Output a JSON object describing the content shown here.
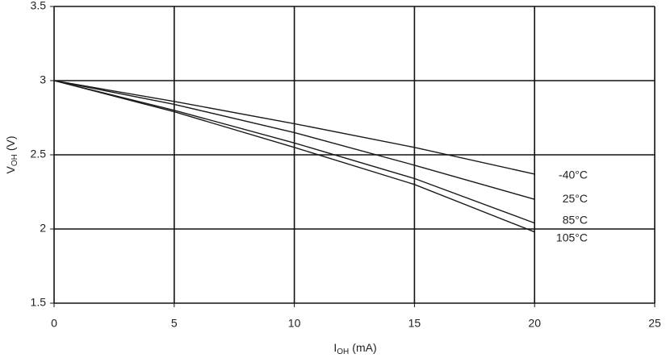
{
  "chart_data": {
    "type": "line",
    "x_label": [
      "I",
      "OH",
      "(mA)"
    ],
    "y_label": [
      "V",
      "OH",
      "(V)"
    ],
    "x": [
      0,
      5,
      10,
      15,
      20
    ],
    "series": [
      {
        "name": "-40°C",
        "color": "#1a1a1a",
        "values": [
          3,
          2.86,
          2.71,
          2.55,
          2.37
        ]
      },
      {
        "name": "25°C",
        "color": "#1a1a1a",
        "values": [
          3,
          2.84,
          2.65,
          2.43,
          2.2
        ]
      },
      {
        "name": "85°C",
        "color": "#1a1a1a",
        "values": [
          3,
          2.8,
          2.58,
          2.34,
          2.04
        ]
      },
      {
        "name": "105°C",
        "color": "#1a1a1a",
        "values": [
          3,
          2.79,
          2.55,
          2.3,
          1.98
        ]
      }
    ],
    "xlim": [
      0,
      25
    ],
    "xticks": [
      0,
      5,
      10,
      15,
      20,
      25
    ],
    "ylim": [
      1.5,
      3.5
    ],
    "yticks": [
      1.5,
      2,
      2.5,
      3,
      3.5
    ],
    "grid": true
  }
}
